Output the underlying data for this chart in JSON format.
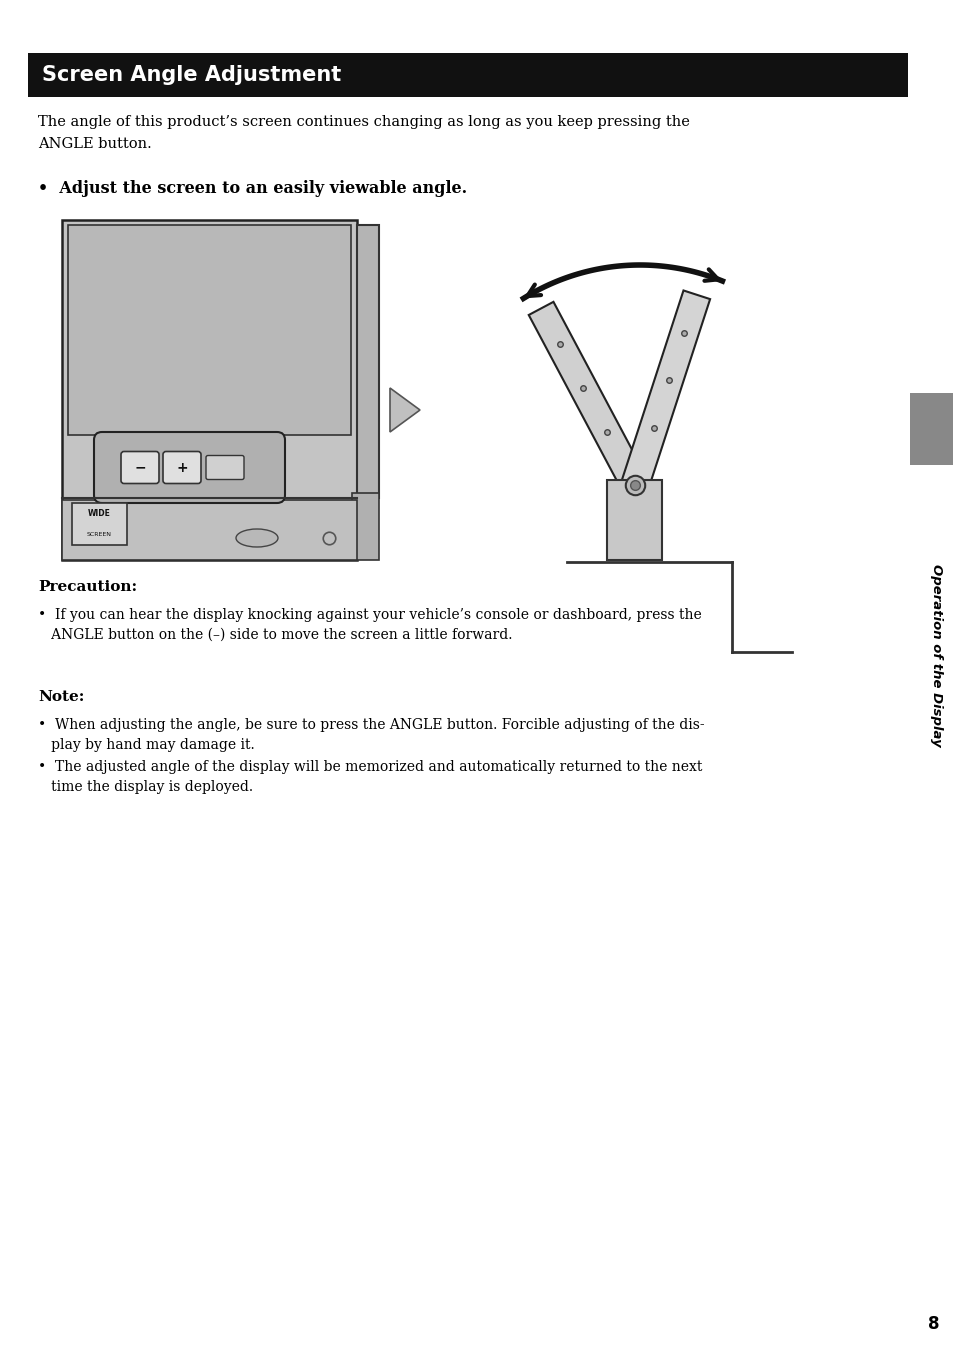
{
  "page_bg": "#ffffff",
  "header_bg": "#111111",
  "header_text": "Screen Angle Adjustment",
  "header_text_color": "#ffffff",
  "header_fontsize": 15,
  "body_text_color": "#000000",
  "sidebar_bg": "#888888",
  "sidebar_text": "Operation of the Display",
  "sidebar_text_color": "#000000",
  "page_number": "8",
  "intro_line1": "The angle of this product’s screen continues changing as long as you keep pressing the",
  "intro_line2": "ANGLE button.",
  "bullet_heading": "•  Adjust the screen to an easily viewable angle.",
  "precaution_heading": "Precaution:",
  "precaution_line1": "•  If you can hear the display knocking against your vehicle’s console or dashboard, press the",
  "precaution_line2": "   ANGLE button on the (–) side to move the screen a little forward.",
  "note_heading": "Note:",
  "note_line1": "•  When adjusting the angle, be sure to press the ANGLE button. Forcible adjusting of the dis-",
  "note_line2": "   play by hand may damage it.",
  "note_line3": "•  The adjusted angle of the display will be memorized and automatically returned to the next",
  "note_line4": "   time the display is deployed."
}
